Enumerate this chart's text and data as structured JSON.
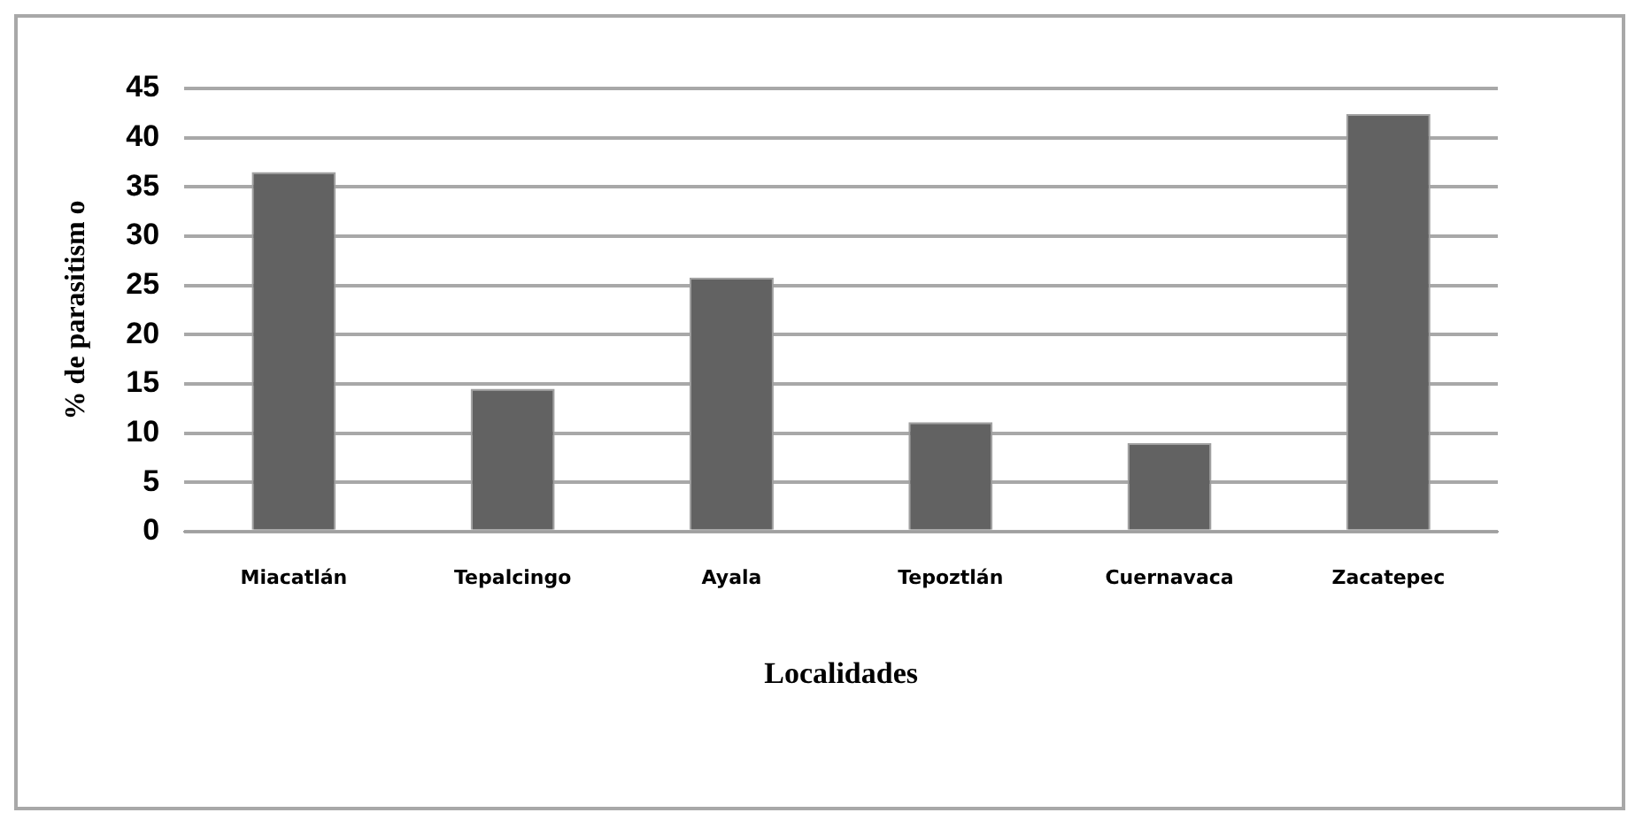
{
  "chart_data": {
    "type": "bar",
    "xlabel": "Localidades",
    "ylabel": "% de parasitism o",
    "categories": [
      "Miacatlán",
      "Tepalcingo",
      "Ayala",
      "Tepoztlán",
      "Cuernavaca",
      "Zacatepec"
    ],
    "values": [
      36.5,
      14.5,
      25.8,
      11.1,
      9.0,
      42.4
    ],
    "color": "#626262",
    "ylim": [
      0,
      45
    ],
    "yticks": [
      0,
      5,
      10,
      15,
      20,
      25,
      30,
      35,
      40,
      45
    ],
    "grid": "y"
  }
}
